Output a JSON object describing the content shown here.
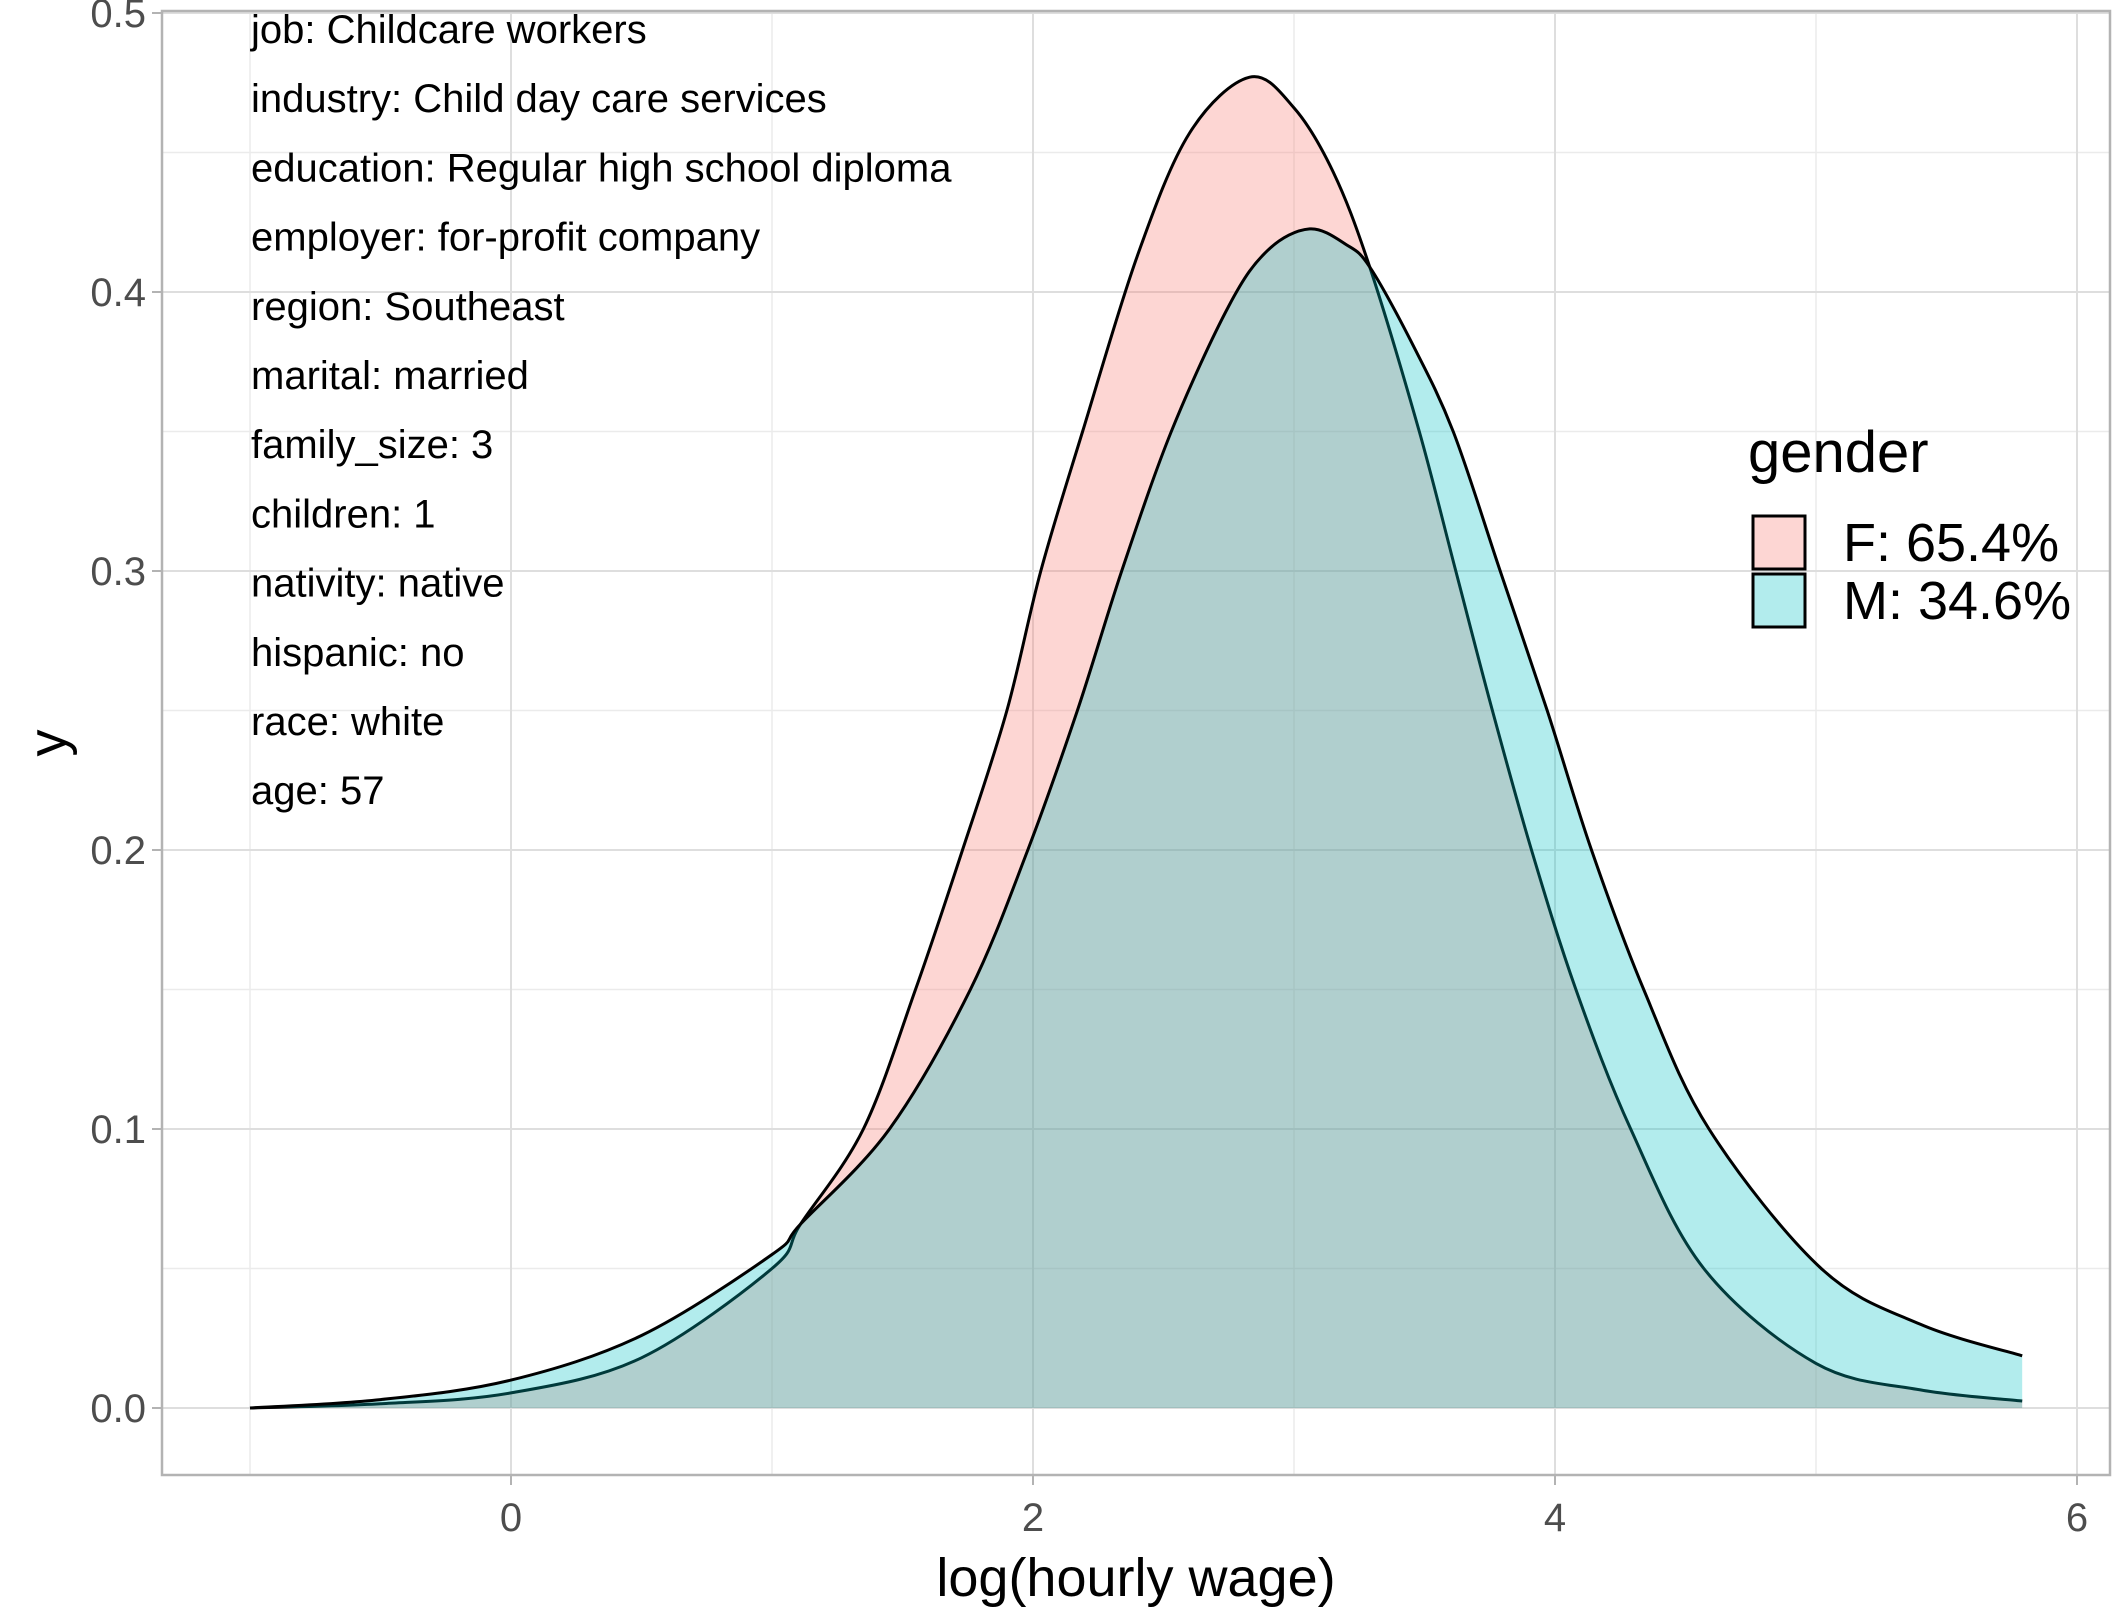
{
  "chart_data": {
    "type": "area",
    "subtype": "density",
    "title": "",
    "xlabel": "log(hourly wage)",
    "ylabel": "y",
    "xlim": [
      -1.2,
      6.05
    ],
    "ylim": [
      -0.023,
      0.5
    ],
    "x_ticks": [
      0,
      2,
      4,
      6
    ],
    "x_tick_labels": [
      "0",
      "2",
      "4",
      "6"
    ],
    "y_ticks": [
      0.0,
      0.1,
      0.2,
      0.3,
      0.4,
      0.5
    ],
    "y_tick_labels": [
      "0.0",
      "0.1",
      "0.2",
      "0.3",
      "0.4",
      "0.5"
    ],
    "grid": true,
    "legend": {
      "title": "gender",
      "placement": "right",
      "entries": [
        {
          "key": "F",
          "label": "F: 65.4%",
          "fill": "#F8766D"
        },
        {
          "key": "M",
          "label": "M: 34.6%",
          "fill": "#00BFC4"
        }
      ]
    },
    "fill_alpha": 0.3,
    "annotations": [
      "job: Childcare workers",
      "industry: Child day care services",
      "education: Regular high school diploma",
      "employer: for-profit company",
      "region: Southeast",
      "marital: married",
      "family_size: 3",
      "children: 1",
      "nativity: native",
      "hispanic: no",
      "race: white",
      "age: 57"
    ],
    "series": [
      {
        "name": "F",
        "color": "#F8766D",
        "x": [
          -1.0,
          -0.5,
          0.0,
          0.5,
          1.0,
          1.11,
          1.35,
          1.55,
          1.73,
          1.9,
          2.03,
          2.19,
          2.4,
          2.6,
          2.83,
          3.0,
          3.15,
          3.29,
          3.48,
          3.62,
          3.76,
          3.91,
          4.08,
          4.29,
          4.57,
          5.0,
          5.4,
          5.79
        ],
        "y": [
          0.0,
          0.0015,
          0.0054,
          0.018,
          0.05,
          0.066,
          0.1,
          0.15,
          0.2,
          0.25,
          0.3,
          0.35,
          0.413,
          0.457,
          0.477,
          0.466,
          0.443,
          0.409,
          0.35,
          0.3,
          0.25,
          0.2,
          0.15,
          0.1,
          0.05,
          0.016,
          0.0065,
          0.0025
        ]
      },
      {
        "name": "M",
        "color": "#00BFC4",
        "x": [
          -1.0,
          -0.5,
          0.0,
          0.5,
          1.0,
          1.11,
          1.45,
          1.76,
          1.98,
          2.17,
          2.34,
          2.53,
          2.75,
          2.9,
          3.06,
          3.2,
          3.29,
          3.45,
          3.61,
          3.79,
          3.97,
          4.14,
          4.34,
          4.59,
          5.02,
          5.4,
          5.79
        ],
        "y": [
          0.0,
          0.003,
          0.01,
          0.026,
          0.055,
          0.066,
          0.1,
          0.15,
          0.2,
          0.25,
          0.3,
          0.35,
          0.395,
          0.415,
          0.4226,
          0.417,
          0.409,
          0.382,
          0.35,
          0.3,
          0.25,
          0.2,
          0.15,
          0.1,
          0.05,
          0.03,
          0.0187
        ]
      }
    ]
  }
}
